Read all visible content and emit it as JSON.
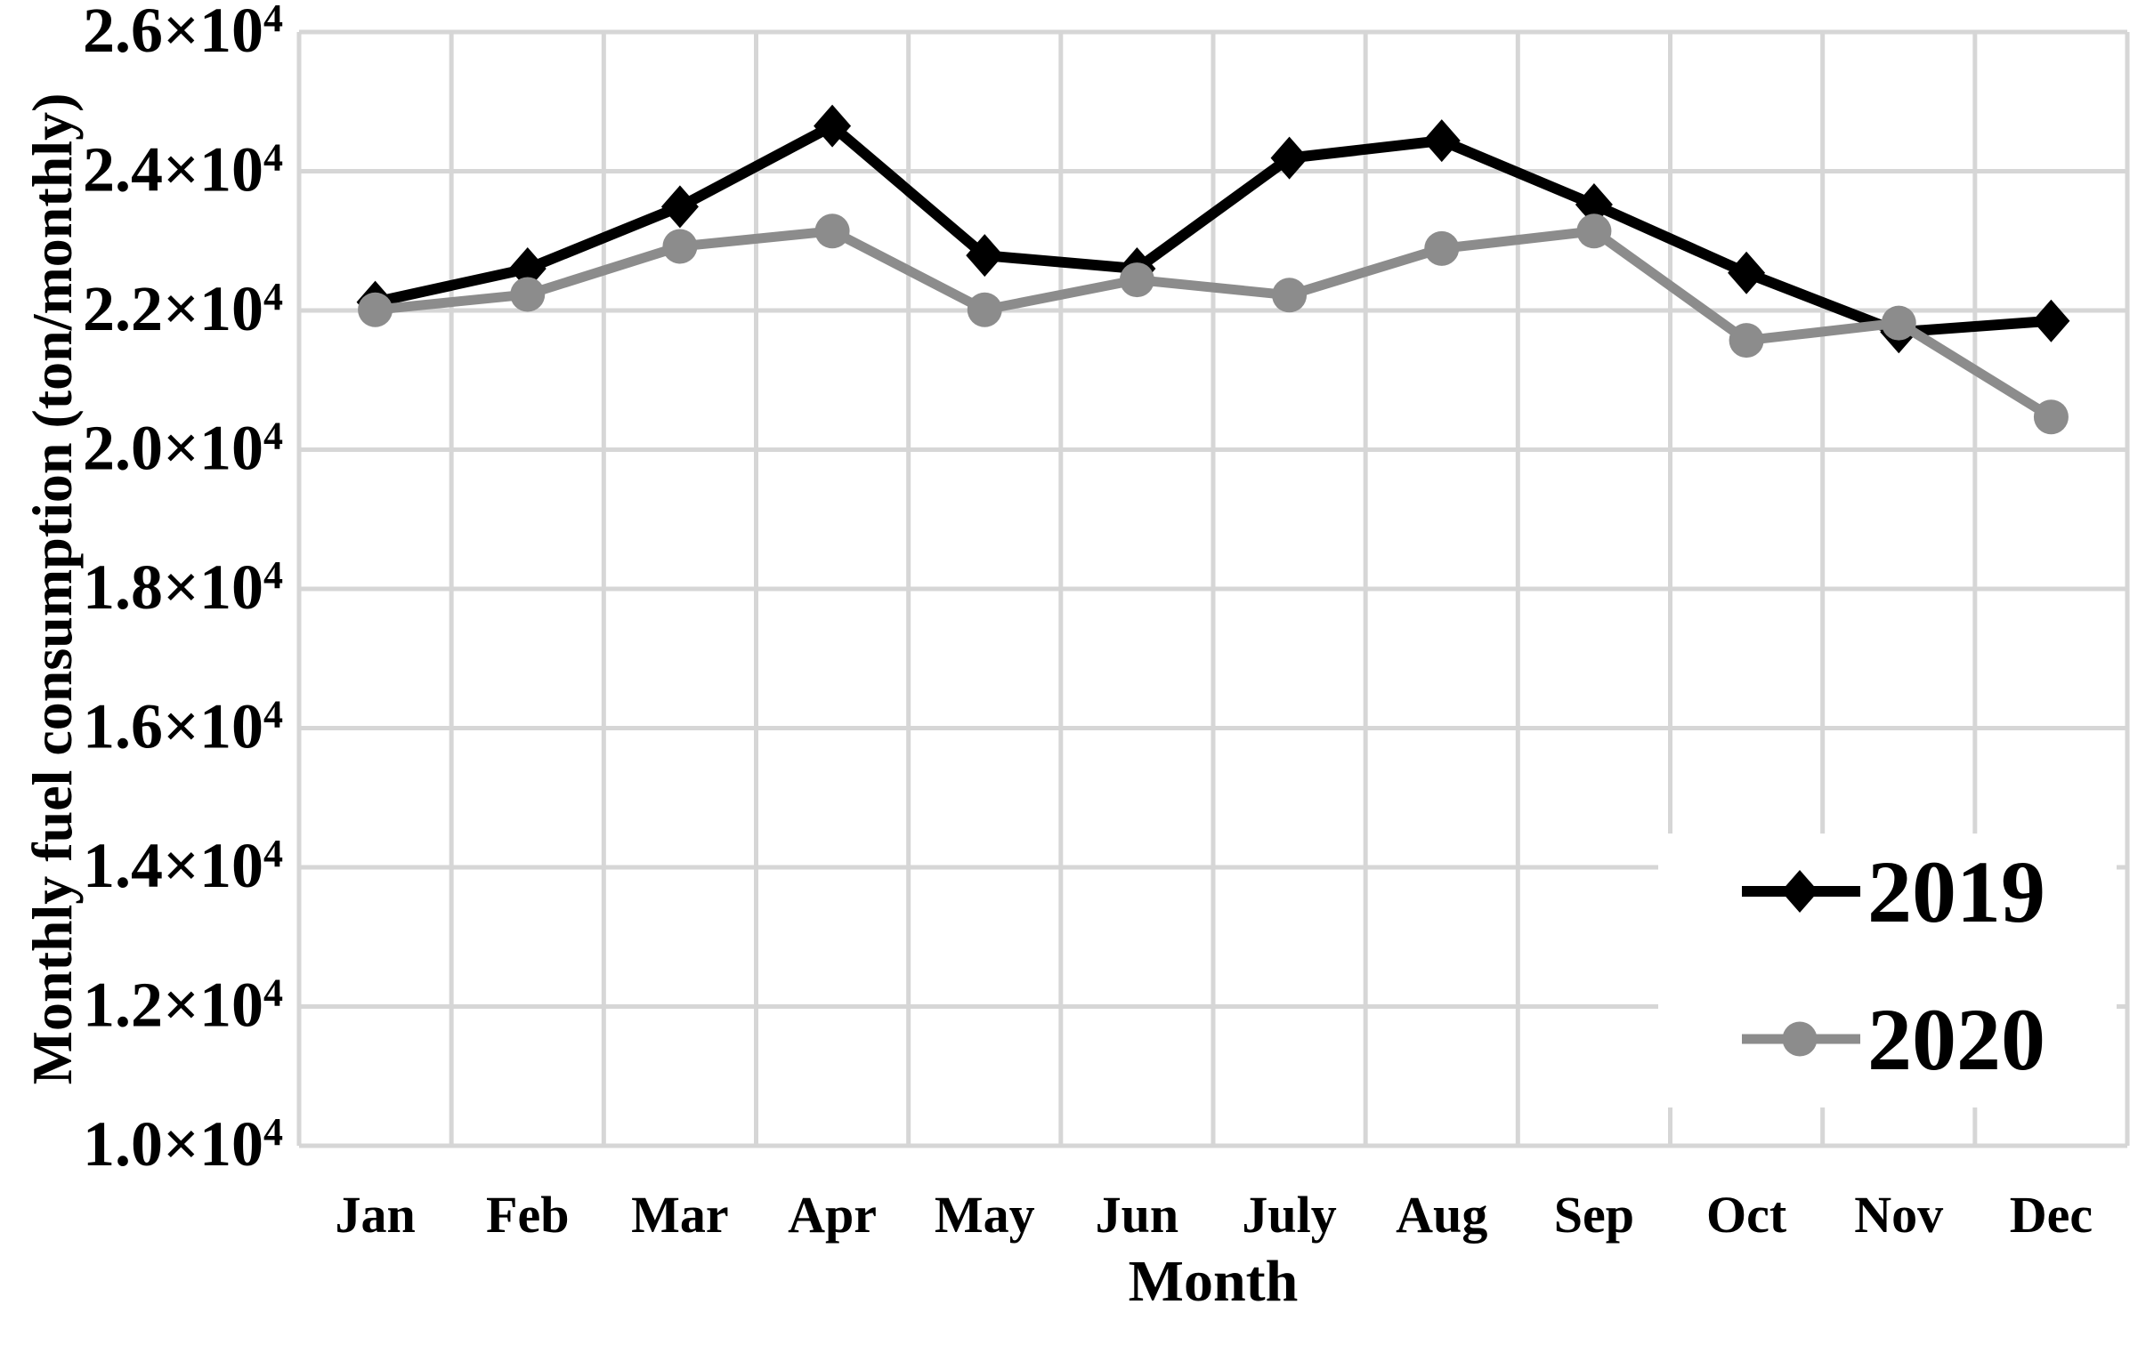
{
  "chart_data": {
    "type": "line",
    "title": "",
    "xlabel": "Month",
    "ylabel": "Monthly fuel consumption (ton/monthly)",
    "categories": [
      "Jan",
      "Feb",
      "Mar",
      "Apr",
      "May",
      "Jun",
      "July",
      "Aug",
      "Sep",
      "Oct",
      "Nov",
      "Dec"
    ],
    "ylim": [
      10000,
      26000
    ],
    "ytick_step": 2000,
    "yticks": [
      {
        "value": 26000,
        "mantissa": "2.6",
        "base": "×10",
        "exponent": "4"
      },
      {
        "value": 24000,
        "mantissa": "2.4",
        "base": "×10",
        "exponent": "4"
      },
      {
        "value": 22000,
        "mantissa": "2.2",
        "base": "×10",
        "exponent": "4"
      },
      {
        "value": 20000,
        "mantissa": "2.0",
        "base": "×10",
        "exponent": "4"
      },
      {
        "value": 18000,
        "mantissa": "1.8",
        "base": "×10",
        "exponent": "4"
      },
      {
        "value": 16000,
        "mantissa": "1.6",
        "base": "×10",
        "exponent": "4"
      },
      {
        "value": 14000,
        "mantissa": "1.4",
        "base": "×10",
        "exponent": "4"
      },
      {
        "value": 12000,
        "mantissa": "1.2",
        "base": "×10",
        "exponent": "4"
      },
      {
        "value": 10000,
        "mantissa": "1.0",
        "base": "×10",
        "exponent": "4"
      }
    ],
    "grid": true,
    "legend_position": "inside-bottom-right",
    "series": [
      {
        "name": "2019",
        "color": "#000000",
        "marker": "diamond",
        "values": [
          22120,
          22600,
          23490,
          24650,
          22790,
          22600,
          24190,
          24440,
          23520,
          22540,
          21690,
          21850
        ]
      },
      {
        "name": "2020",
        "color": "#8c8c8c",
        "marker": "circle",
        "values": [
          22010,
          22230,
          22920,
          23140,
          22010,
          22440,
          22220,
          22890,
          23140,
          21570,
          21820,
          20470
        ]
      }
    ]
  },
  "colors": {
    "grid": "#d6d6d6",
    "panel_border": "#d6d6d6",
    "background": "#ffffff",
    "legend_background": "#ffffff",
    "text": "#000000",
    "series_2019": "#000000",
    "series_2020": "#8c8c8c"
  }
}
